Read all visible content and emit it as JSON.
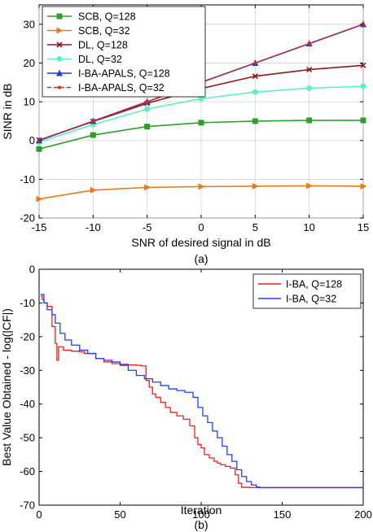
{
  "chart_data": [
    {
      "type": "line",
      "panel_label": "(a)",
      "xlabel": "SNR of desired signal in dB",
      "ylabel": "SINR in dB",
      "xlim": [
        -15,
        15
      ],
      "ylim": [
        -20,
        35
      ],
      "xticks": [
        -15,
        -10,
        -5,
        0,
        5,
        10,
        15
      ],
      "yticks": [
        -20,
        -10,
        0,
        10,
        20,
        30
      ],
      "grid": true,
      "legend_position": "top-left",
      "x": [
        -15,
        -10,
        -5,
        0,
        5,
        10,
        15
      ],
      "series": [
        {
          "name": "SCB, Q=128",
          "color": "#2ca02c",
          "marker": "square",
          "dash": false,
          "values": [
            -2.2,
            1.4,
            3.6,
            4.6,
            5.0,
            5.2,
            5.2
          ]
        },
        {
          "name": "SCB, Q=32",
          "color": "#e87a1e",
          "marker": "triangle-right",
          "dash": false,
          "values": [
            -15.1,
            -12.8,
            -12.1,
            -11.9,
            -11.8,
            -11.7,
            -11.8
          ]
        },
        {
          "name": "DL, Q=128",
          "color": "#8b1a1a",
          "marker": "x",
          "dash": false,
          "values": [
            0.1,
            4.9,
            9.6,
            13.4,
            16.6,
            18.3,
            19.4
          ]
        },
        {
          "name": "DL, Q=32",
          "color": "#5ef0c0",
          "marker": "circle",
          "dash": false,
          "values": [
            -0.4,
            4.1,
            8.1,
            10.8,
            12.5,
            13.5,
            14.0
          ]
        },
        {
          "name": "I-BA-APALS, Q=128",
          "color": "#1f3fd6",
          "marker": "triangle-up",
          "dash": false,
          "values": [
            0.0,
            5.0,
            10.0,
            15.0,
            20.0,
            25.0,
            30.0
          ]
        },
        {
          "name": "I-BA-APALS, Q=32",
          "color": "#e8231a",
          "marker": "dot",
          "dash": true,
          "values": [
            0.0,
            5.0,
            10.0,
            15.0,
            20.0,
            25.0,
            30.0
          ]
        }
      ]
    },
    {
      "type": "line",
      "panel_label": "(b)",
      "xlabel": "Iteration",
      "ylabel": "Best Value Obtained - log(|CF|)",
      "xlim": [
        0,
        200
      ],
      "ylim": [
        -70,
        0
      ],
      "xticks": [
        0,
        50,
        100,
        150,
        200
      ],
      "yticks": [
        -70,
        -60,
        -50,
        -40,
        -30,
        -20,
        -10,
        0
      ],
      "grid": false,
      "legend_position": "top-right",
      "series": [
        {
          "name": "I-BA, Q=128",
          "color": "#ff1a1a",
          "x": [
            1,
            2,
            3,
            5,
            8,
            10,
            11,
            12,
            15,
            20,
            25,
            28,
            35,
            40,
            45,
            50,
            55,
            60,
            63,
            66,
            68,
            70,
            72,
            75,
            78,
            81,
            85,
            89,
            93,
            96,
            98,
            100,
            102,
            105,
            108,
            110,
            112,
            115,
            118,
            121,
            123,
            125,
            130,
            135,
            140,
            150,
            160,
            170,
            180,
            190,
            200
          ],
          "values": [
            -8,
            -9,
            -10,
            -11,
            -17,
            -22,
            -27,
            -23,
            -24,
            -24.3,
            -24.5,
            -25,
            -26.5,
            -27.5,
            -28,
            -28.2,
            -28.4,
            -28.5,
            -28.7,
            -33,
            -35,
            -37,
            -38,
            -39.5,
            -41,
            -42.5,
            -43.5,
            -44.5,
            -46.5,
            -50,
            -52,
            -53,
            -55,
            -56,
            -57,
            -57.5,
            -58,
            -58.5,
            -59,
            -61,
            -63.5,
            -64.7,
            -64.8,
            -64.8,
            -64.8,
            -64.8,
            -64.8,
            -64.8,
            -64.8,
            -64.8,
            -64.8
          ]
        },
        {
          "name": "I-BA, Q=32",
          "color": "#1f3fff",
          "x": [
            1,
            3,
            5,
            8,
            10,
            13,
            16,
            20,
            25,
            30,
            35,
            40,
            45,
            50,
            55,
            60,
            65,
            70,
            75,
            80,
            85,
            90,
            95,
            98,
            101,
            104,
            107,
            110,
            113,
            116,
            119,
            122,
            125,
            128,
            131,
            134,
            136,
            140,
            150,
            160,
            170,
            180,
            190,
            200
          ],
          "values": [
            -7.5,
            -10,
            -12,
            -13.5,
            -16,
            -19,
            -21,
            -22.5,
            -24,
            -25,
            -26.5,
            -27,
            -27.5,
            -28.5,
            -30,
            -31.5,
            -32.5,
            -33.5,
            -34.5,
            -35.5,
            -36,
            -36.5,
            -38,
            -41,
            -43.5,
            -45.5,
            -48,
            -50,
            -52.5,
            -55,
            -57,
            -59.5,
            -61.5,
            -63,
            -64,
            -64.6,
            -64.8,
            -64.8,
            -64.8,
            -64.8,
            -64.8,
            -64.8,
            -64.8,
            -64.8
          ]
        }
      ]
    }
  ]
}
